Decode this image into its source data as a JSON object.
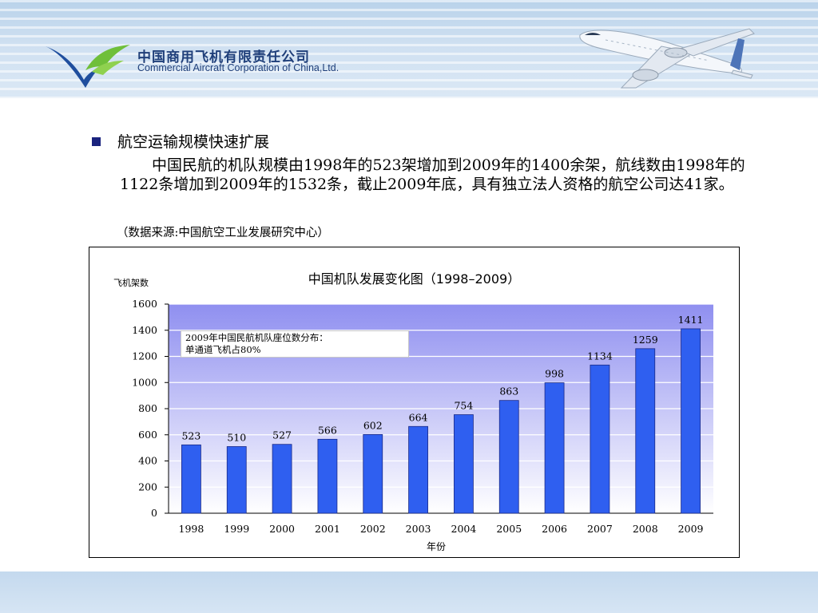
{
  "header": {
    "company_cn": "中国商用飞机有限责任公司",
    "company_en": "Commercial Aircraft Corporation of China,Ltd."
  },
  "content": {
    "heading": "航空运输规模快速扩展",
    "paragraph": "中国民航的机队规模由1998年的523架增加到2009年的1400余架，航线数由1998年的1122条增加到2009年的1532条，截止2009年底，具有独立法人资格的航空公司达41家。",
    "source": "（数据来源:中国航空工业发展研究中心）"
  },
  "chart_data": {
    "type": "bar",
    "title": "中国机队发展变化图（1998–2009）",
    "ylabel": "飞机架数",
    "xlabel": "年份",
    "categories": [
      "1998",
      "1999",
      "2000",
      "2001",
      "2002",
      "2003",
      "2004",
      "2005",
      "2006",
      "2007",
      "2008",
      "2009"
    ],
    "values": [
      523,
      510,
      527,
      566,
      602,
      664,
      754,
      863,
      998,
      1134,
      1259,
      1411
    ],
    "ylim": [
      0,
      1600
    ],
    "yticks": [
      0,
      200,
      400,
      600,
      800,
      1000,
      1200,
      1400,
      1600
    ],
    "grid": true,
    "bar_color": "#2f5ff0",
    "annotation": [
      "2009年中国民航机队座位数分布：",
      "单通道飞机占80%"
    ]
  },
  "colors": {
    "header_blue": "#1f3f7a",
    "plot_top": "#8f8ff0",
    "plot_bottom": "#ffffff"
  }
}
